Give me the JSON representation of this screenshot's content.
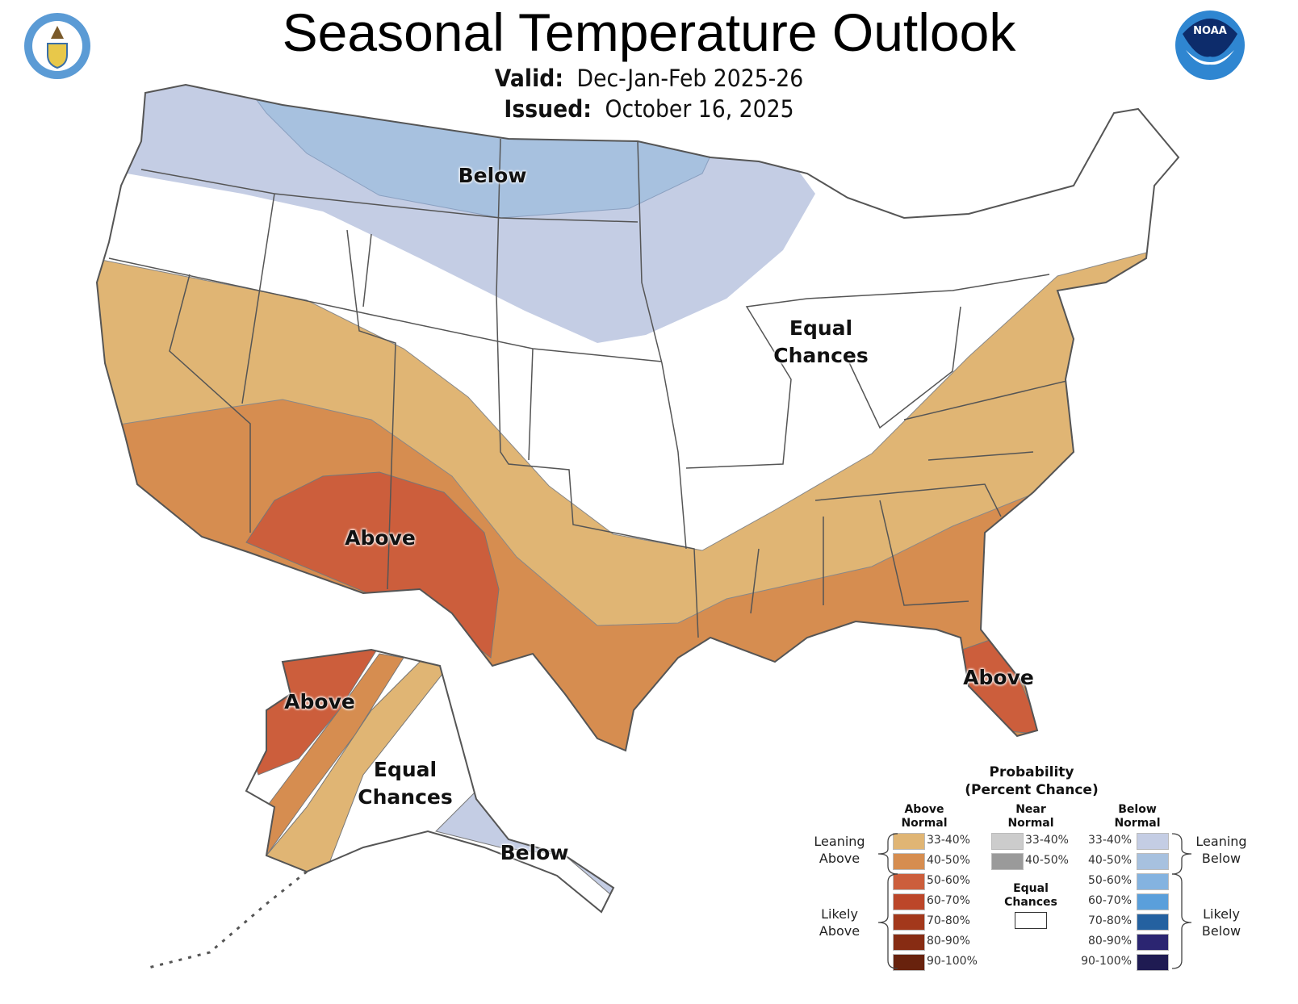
{
  "header": {
    "title": "Seasonal Temperature Outlook",
    "valid_label": "Valid:",
    "valid_value": "Dec-Jan-Feb 2025-26",
    "issued_label": "Issued:",
    "issued_value": "October 16, 2025",
    "left_logo": "department-of-commerce-seal",
    "right_logo": "noaa-logo",
    "noaa_logo_text": "NOAA"
  },
  "map": {
    "labels": {
      "below_north": "Below",
      "equal_conus_1": "Equal",
      "equal_conus_2": "Chances",
      "above_sw": "Above",
      "above_fl": "Above",
      "above_ak": "Above",
      "equal_ak_1": "Equal",
      "equal_ak_2": "Chances",
      "below_ak": "Below"
    }
  },
  "legend": {
    "title1": "Probability",
    "title2": "(Percent Chance)",
    "above_header": [
      "Above",
      "Normal"
    ],
    "near_header": [
      "Near",
      "Normal"
    ],
    "below_header": [
      "Below",
      "Normal"
    ],
    "leaning_above": [
      "Leaning",
      "Above"
    ],
    "likely_above": [
      "Likely",
      "Above"
    ],
    "leaning_below": [
      "Leaning",
      "Below"
    ],
    "likely_below": [
      "Likely",
      "Below"
    ],
    "equal_chances": [
      "Equal",
      "Chances"
    ],
    "above": [
      {
        "range": "33-40%",
        "color": "#e0b574"
      },
      {
        "range": "40-50%",
        "color": "#d68d50"
      },
      {
        "range": "50-60%",
        "color": "#cc5e3c"
      },
      {
        "range": "60-70%",
        "color": "#bc4629"
      },
      {
        "range": "70-80%",
        "color": "#a3381b"
      },
      {
        "range": "80-90%",
        "color": "#872c13"
      },
      {
        "range": "90-100%",
        "color": "#68220d"
      }
    ],
    "near": [
      {
        "range": "33-40%",
        "color": "#cccccc"
      },
      {
        "range": "40-50%",
        "color": "#9a9a9a"
      }
    ],
    "below": [
      {
        "range": "33-40%",
        "color": "#c4cde4"
      },
      {
        "range": "40-50%",
        "color": "#a7c1df"
      },
      {
        "range": "50-60%",
        "color": "#84b3e0"
      },
      {
        "range": "60-70%",
        "color": "#5a9fdb"
      },
      {
        "range": "70-80%",
        "color": "#2461a0"
      },
      {
        "range": "80-90%",
        "color": "#2b2571"
      },
      {
        "range": "90-100%",
        "color": "#1f1b52"
      }
    ],
    "equal_color": "#ffffff"
  }
}
